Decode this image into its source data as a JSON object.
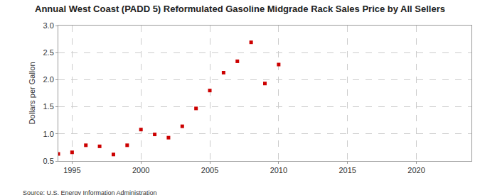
{
  "chart_data": {
    "type": "scatter",
    "title": "Annual West Coast (PADD 5) Reformulated Gasoline Midgrade Rack Sales Price by All Sellers",
    "y_label": "Dollars per Gallon",
    "annotations": [
      "Source: U.S. Energy Information Administration"
    ],
    "x": [
      1994,
      1995,
      1996,
      1997,
      1998,
      1999,
      2000,
      2001,
      2002,
      2003,
      2004,
      2005,
      2006,
      2007,
      2008,
      2009,
      2010
    ],
    "values": [
      0.63,
      0.66,
      0.79,
      0.77,
      0.62,
      0.79,
      1.08,
      0.99,
      0.93,
      1.14,
      1.47,
      1.8,
      2.13,
      2.34,
      2.69,
      1.93,
      2.28
    ],
    "color": "#cc0000",
    "marker": "square",
    "xlim": [
      1994,
      2024
    ],
    "xticks": [
      1995,
      2000,
      2005,
      2010,
      2015,
      2020
    ],
    "ylim": [
      0.5,
      3.0
    ],
    "yticks": [
      0.5,
      {
        "value": 1.0,
        "label": "1.0"
      },
      1.5,
      {
        "value": 2.0,
        "label": "2.0"
      },
      2.5,
      {
        "value": 3.0,
        "label": "3.0"
      }
    ],
    "grid": true
  }
}
